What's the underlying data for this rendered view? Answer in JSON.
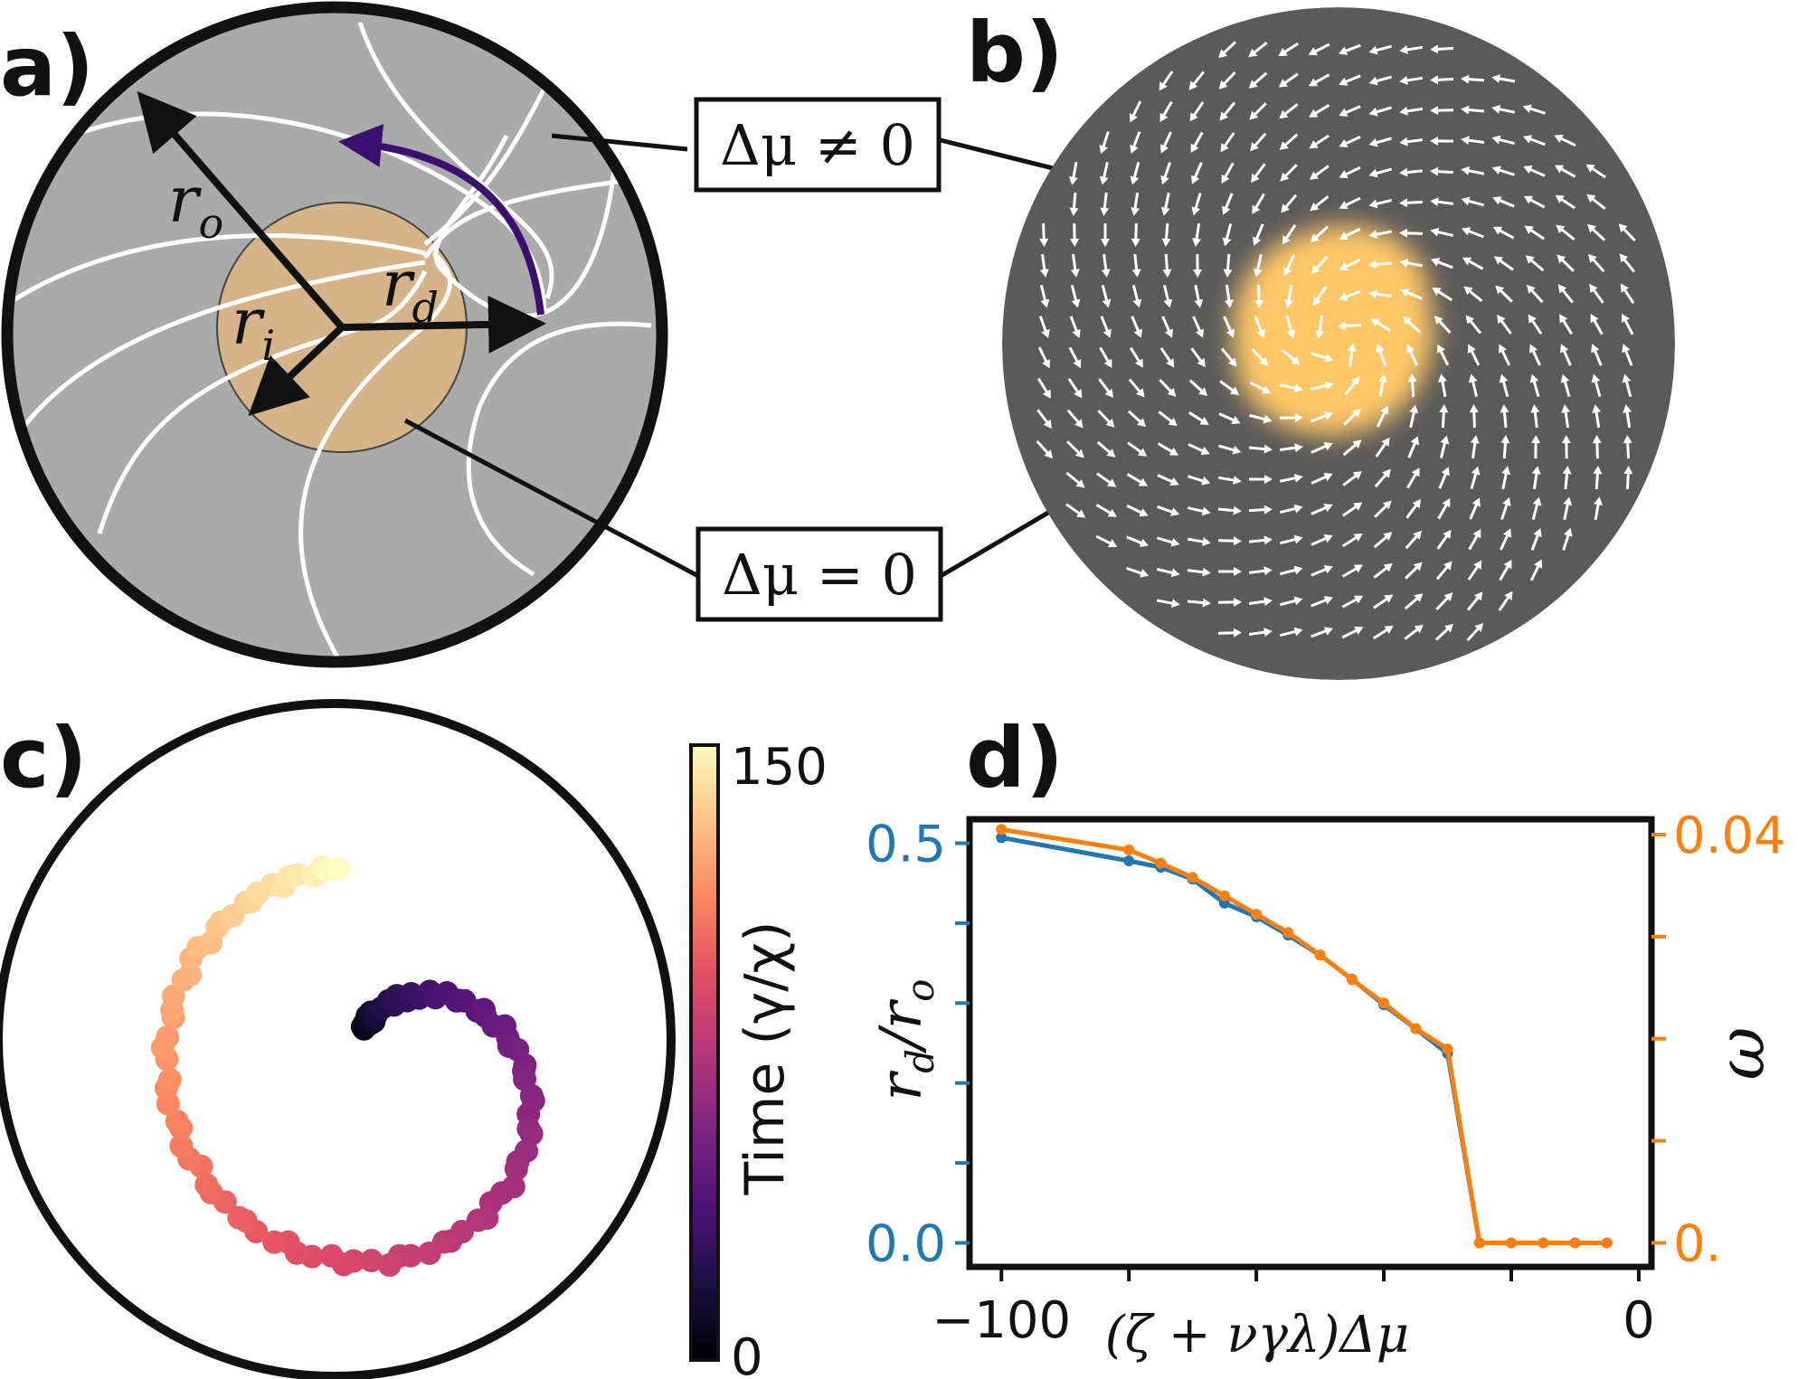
{
  "panels": {
    "a": {
      "label": "a)",
      "r_outer": "r",
      "r_outer_sub": "o",
      "r_inner": "r",
      "r_inner_sub": "i",
      "r_defect": "r",
      "r_defect_sub": "d"
    },
    "b": {
      "label": "b)"
    },
    "c": {
      "label": "c)"
    },
    "d": {
      "label": "d)"
    }
  },
  "callouts": {
    "active": "Δμ ≠ 0",
    "passive": "Δμ = 0"
  },
  "colorbar": {
    "label": "Time (γ/χ)",
    "max_label": "150",
    "min_label": "0",
    "min": 0,
    "max": 150
  },
  "colors": {
    "outer_region": "#aaaaaa",
    "inner_region": "#d4b488",
    "defect_path": "#3b0f70",
    "field_bg": "#5a5a5a",
    "field_core": "#ffc766",
    "series_left": "#1f77b4",
    "series_right": "#ff7f0e"
  },
  "chart_data": {
    "type": "line",
    "xlabel": "(ζ + νγλ)Δμ",
    "xlim": [
      -105,
      2
    ],
    "x_ticks": [
      -100,
      -80,
      -60,
      -40,
      -20,
      0
    ],
    "x_tick_labels": [
      "−100",
      "",
      "",
      "",
      "",
      "0"
    ],
    "ylabel": "r_d/r_o",
    "ylabel_main": "r",
    "ylabel_sub1": "d",
    "ylabel_mid": "/r",
    "ylabel_sub2": "o",
    "ylim": [
      -0.03,
      0.53
    ],
    "y_ticks": [
      0.0,
      0.1,
      0.2,
      0.3,
      0.4,
      0.5
    ],
    "y_tick_labels": [
      "0.0",
      "",
      "",
      "",
      "",
      "0.5"
    ],
    "y2label": "ω",
    "y2lim": [
      -0.00235,
      0.0415
    ],
    "y2_ticks": [
      0.0,
      0.01,
      0.02,
      0.03,
      0.04
    ],
    "y2_tick_labels": [
      "0.",
      "",
      "",
      "",
      "0.04"
    ],
    "series": [
      {
        "name": "r_d/r_o",
        "axis": "left",
        "x": [
          -100,
          -80,
          -75,
          -70,
          -65,
          -60,
          -55,
          -50,
          -45,
          -40,
          -35,
          -30,
          -25,
          -20,
          -15,
          -10,
          -5
        ],
        "values": [
          0.507,
          0.478,
          0.47,
          0.455,
          0.425,
          0.408,
          0.385,
          0.36,
          0.33,
          0.298,
          0.268,
          0.237,
          0.0,
          0.0,
          0.0,
          0.0,
          0.0
        ]
      },
      {
        "name": "ω",
        "axis": "right",
        "x": [
          -100,
          -80,
          -75,
          -70,
          -65,
          -60,
          -55,
          -50,
          -45,
          -40,
          -35,
          -30,
          -25,
          -20,
          -15,
          -10,
          -5
        ],
        "values": [
          0.0405,
          0.0385,
          0.0372,
          0.0358,
          0.034,
          0.0322,
          0.0304,
          0.0282,
          0.0258,
          0.0235,
          0.021,
          0.019,
          0.0,
          0.0,
          0.0,
          0.0,
          0.0
        ]
      }
    ]
  },
  "trajectory": {
    "description_points": [
      [
        0.08,
        0.0
      ],
      [
        0.09,
        0.18
      ],
      [
        0.12,
        0.36
      ],
      [
        0.17,
        0.55
      ],
      [
        0.24,
        0.74
      ],
      [
        0.33,
        0.93
      ],
      [
        0.43,
        1.13
      ],
      [
        0.55,
        1.33
      ],
      [
        0.67,
        1.54
      ],
      [
        0.79,
        1.76
      ],
      [
        0.9,
        1.98
      ],
      [
        1.0,
        2.21
      ],
      [
        1.08,
        2.45
      ],
      [
        1.14,
        2.7
      ],
      [
        1.18,
        2.95
      ],
      [
        1.2,
        3.21
      ],
      [
        1.2,
        3.47
      ],
      [
        1.19,
        3.74
      ],
      [
        1.17,
        4.01
      ],
      [
        1.14,
        4.28
      ],
      [
        1.11,
        4.55
      ],
      [
        1.08,
        4.83
      ],
      [
        1.05,
        5.1
      ],
      [
        1.02,
        5.37
      ],
      [
        0.99,
        5.63
      ],
      [
        0.97,
        5.88
      ],
      [
        0.95,
        6.12
      ],
      [
        0.94,
        6.34
      ]
    ]
  }
}
